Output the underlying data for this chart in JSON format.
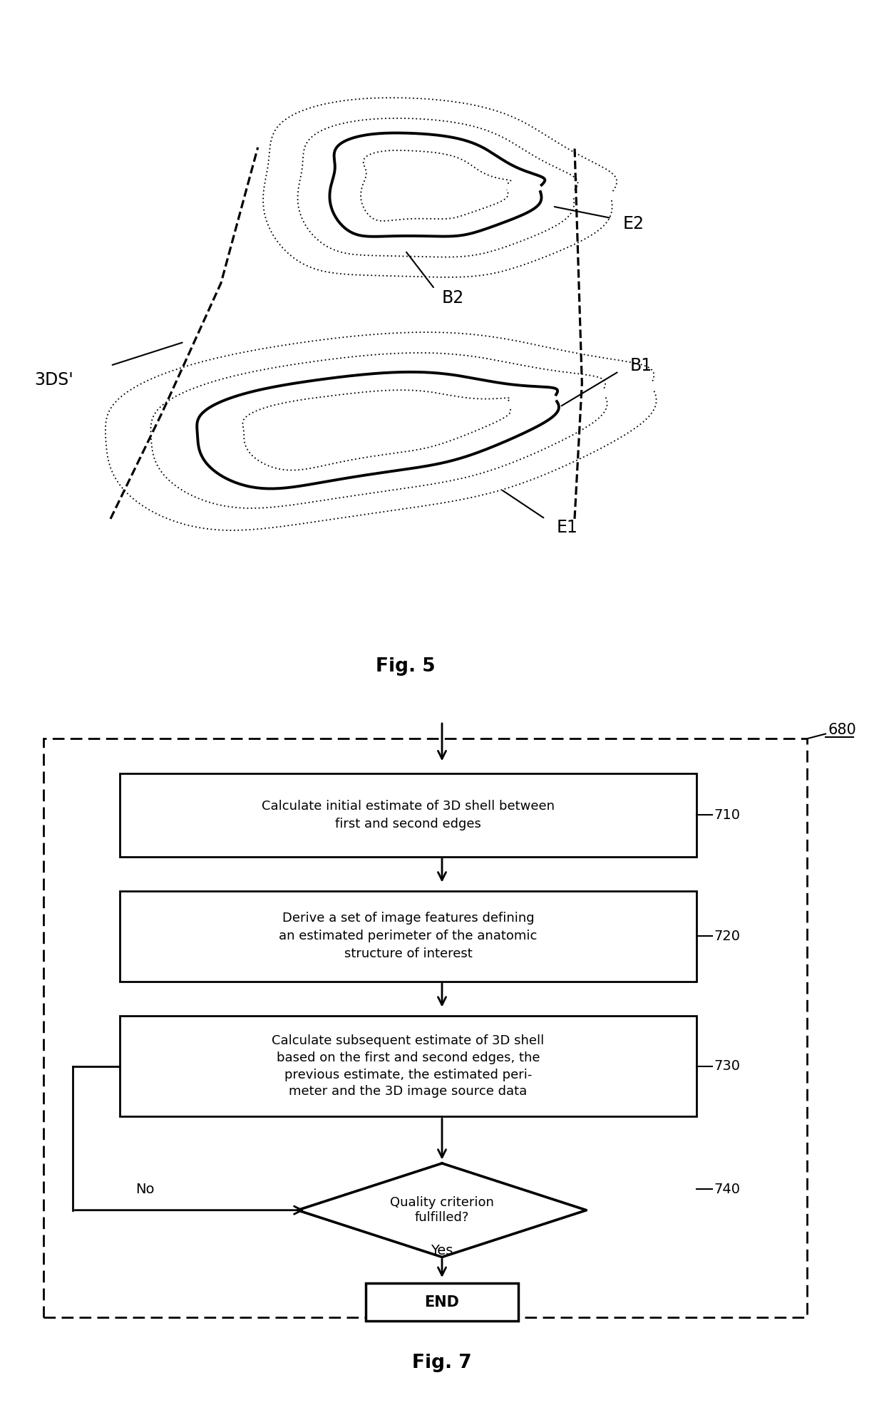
{
  "fig5_title": "Fig. 5",
  "fig7_title": "Fig. 7",
  "bg_color": "#ffffff",
  "line_color": "#000000",
  "box680_label": "680",
  "box710_label": "710",
  "box710_text": "Calculate initial estimate of 3D shell between\nfirst and second edges",
  "box720_label": "720",
  "box720_text": "Derive a set of image features defining\nan estimated perimeter of the anatomic\nstructure of interest",
  "box730_label": "730",
  "box730_text": "Calculate subsequent estimate of 3D shell\nbased on the first and second edges, the\nprevious estimate, the estimated peri-\nmeter and the 3D image source data",
  "box740_label": "740",
  "box740_text": "Quality criterion\nfulfilled?",
  "end_text": "END",
  "yes_label": "Yes",
  "no_label": "No",
  "label_3ds": "3DS'",
  "label_b1": "B1",
  "label_b2": "B2",
  "label_e1": "E1",
  "label_e2": "E2"
}
